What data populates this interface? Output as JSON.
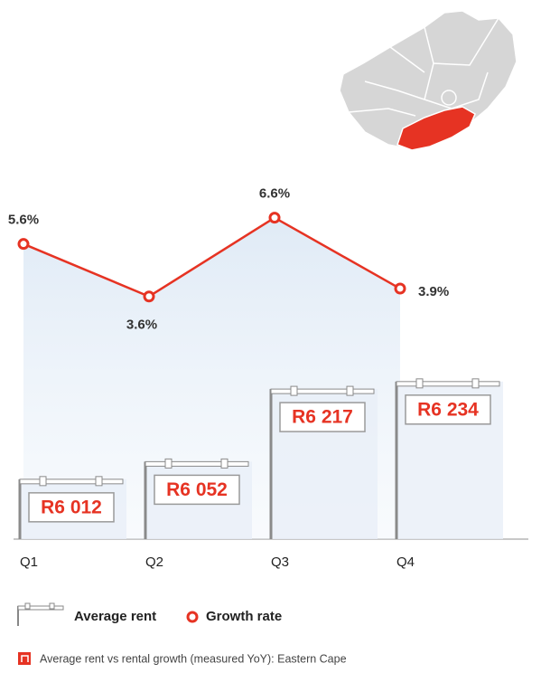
{
  "chart_data": {
    "type": "bar-line",
    "caption": "Average rent vs rental growth (measured YoY): Eastern Cape",
    "categories": [
      "Q1",
      "Q2",
      "Q3",
      "Q4"
    ],
    "series": [
      {
        "name": "Average rent",
        "type": "bar",
        "color": "#e63323",
        "values": [
          6012,
          6052,
          6217,
          6234
        ],
        "value_labels": [
          "R6 012",
          "R6 052",
          "R6 217",
          "R6 234"
        ]
      },
      {
        "name": "Growth rate",
        "type": "line",
        "axis": "y2",
        "color": "#e63323",
        "values": [
          5.6,
          3.6,
          6.6,
          3.9
        ],
        "value_labels": [
          "5.6%",
          "3.6%",
          "6.6%",
          "3.9%"
        ]
      }
    ],
    "ylim": [
      5876,
      6690
    ],
    "y2lim": [
      -5.64,
      8.0
    ]
  }
}
